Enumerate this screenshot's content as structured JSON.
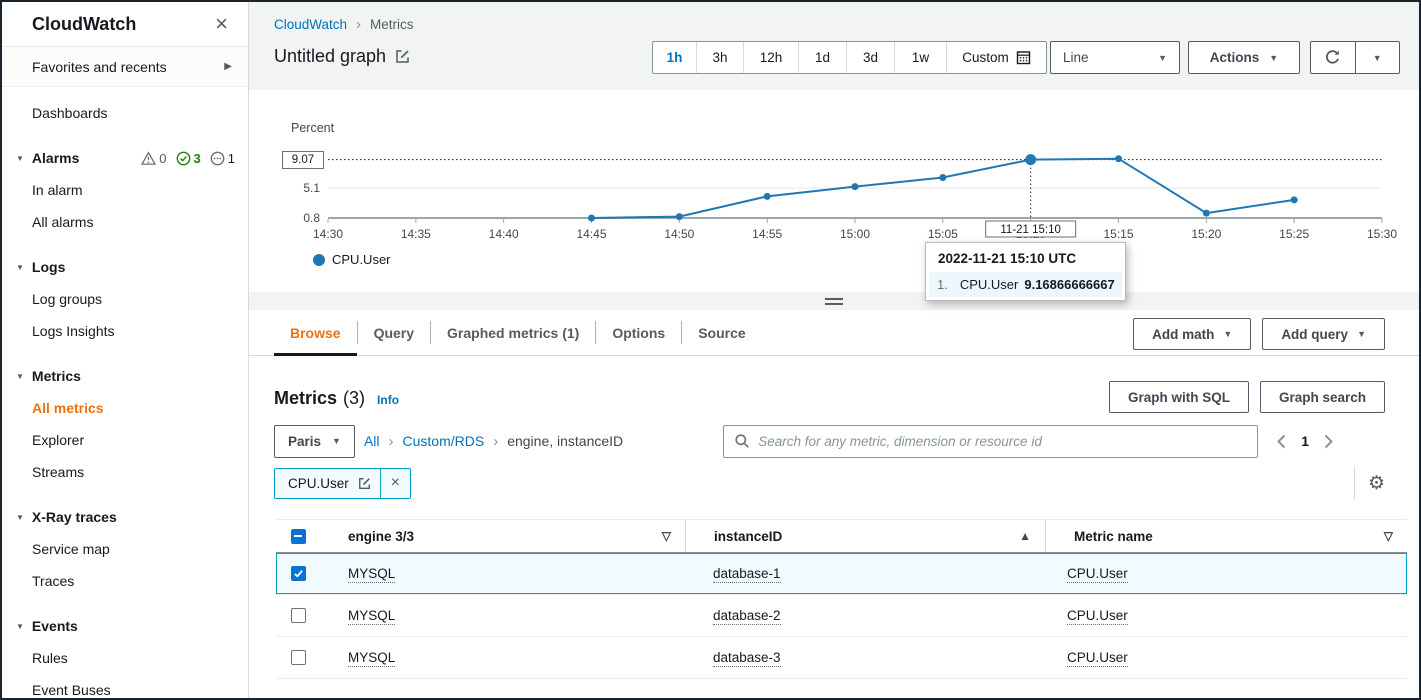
{
  "colors": {
    "accent_blue": "#0073bb",
    "accent_orange": "#ec7211",
    "chart_line": "#1f77b4",
    "selected_row_bg": "#f1faff",
    "selected_row_border": "#00a1c9",
    "checkbox_blue": "#0972d3"
  },
  "icons": {
    "close": "×",
    "fav_arrow": "▶",
    "section_caret": "▼",
    "dropdown_caret": "▼",
    "sort_unsorted": "▽",
    "sort_asc": "▲",
    "gear": "⚙"
  },
  "sidebar": {
    "title": "CloudWatch",
    "favorites": "Favorites and recents",
    "alarm_badges": {
      "in_alarm": "0",
      "ok": "3",
      "insufficient": "1"
    },
    "items": [
      {
        "label": "Dashboards"
      },
      {
        "label": "Alarms"
      },
      {
        "label": "In alarm"
      },
      {
        "label": "All alarms"
      },
      {
        "label": "Logs"
      },
      {
        "label": "Log groups"
      },
      {
        "label": "Logs Insights"
      },
      {
        "label": "Metrics"
      },
      {
        "label": "All metrics"
      },
      {
        "label": "Explorer"
      },
      {
        "label": "Streams"
      },
      {
        "label": "X-Ray traces"
      },
      {
        "label": "Service map"
      },
      {
        "label": "Traces"
      },
      {
        "label": "Events"
      },
      {
        "label": "Rules"
      },
      {
        "label": "Event Buses"
      }
    ]
  },
  "header": {
    "breadcrumb": [
      "CloudWatch",
      "Metrics"
    ],
    "title": "Untitled graph",
    "time_ranges": [
      "1h",
      "3h",
      "12h",
      "1d",
      "3d",
      "1w"
    ],
    "active_time_range": "1h",
    "custom_label": "Custom",
    "line_dropdown": "Line",
    "actions_label": "Actions"
  },
  "tabs": {
    "items": [
      "Browse",
      "Query",
      "Graphed metrics (1)",
      "Options",
      "Source"
    ],
    "active": "Browse",
    "add_math": "Add math",
    "add_query": "Add query"
  },
  "metrics_panel": {
    "title": "Metrics",
    "count": "(3)",
    "info": "Info",
    "graph_with_sql": "Graph with SQL",
    "graph_search": "Graph search",
    "region": "Paris",
    "breadcrumb": [
      "All",
      "Custom/RDS",
      "engine, instanceID"
    ],
    "search_placeholder": "Search for any metric, dimension or resource id",
    "page": "1",
    "filter_chip": "CPU.User"
  },
  "table": {
    "columns": [
      {
        "label": "engine 3/3",
        "sort": "none"
      },
      {
        "label": "instanceID",
        "sort": "asc"
      },
      {
        "label": "Metric name",
        "sort": "none"
      }
    ],
    "rows": [
      {
        "selected": true,
        "engine": "MYSQL",
        "instanceID": "database-1",
        "metric": "CPU.User"
      },
      {
        "selected": false,
        "engine": "MYSQL",
        "instanceID": "database-2",
        "metric": "CPU.User"
      },
      {
        "selected": false,
        "engine": "MYSQL",
        "instanceID": "database-3",
        "metric": "CPU.User"
      }
    ]
  },
  "chart_data": {
    "type": "line",
    "title": "Untitled graph",
    "ylabel": "Percent",
    "x_ticks": [
      "14:30",
      "14:35",
      "14:40",
      "14:45",
      "14:50",
      "14:55",
      "15:00",
      "15:05",
      "15:10",
      "15:15",
      "15:20",
      "15:25",
      "15:30"
    ],
    "y_axis_labels": [
      "9.07",
      "5.1",
      "0.8"
    ],
    "y_gridlines": [
      0.8,
      5.1
    ],
    "ylim": [
      0.8,
      10.2
    ],
    "grid": true,
    "legend_position": "bottom-left",
    "hover_x": "15:10",
    "hover_x_label": "11-21 15:10",
    "hover_line_value": 9.16866666667,
    "series": [
      {
        "name": "CPU.User",
        "color": "#1f77b4",
        "points": [
          {
            "x": "14:45",
            "y": 0.8
          },
          {
            "x": "14:50",
            "y": 1.0
          },
          {
            "x": "14:55",
            "y": 3.9
          },
          {
            "x": "15:00",
            "y": 5.3
          },
          {
            "x": "15:05",
            "y": 6.6
          },
          {
            "x": "15:10",
            "y": 9.16866666667
          },
          {
            "x": "15:15",
            "y": 9.3
          },
          {
            "x": "15:20",
            "y": 1.5
          },
          {
            "x": "15:25",
            "y": 3.4
          }
        ]
      }
    ],
    "tooltip": {
      "title": "2022-11-21 15:10 UTC",
      "rows": [
        {
          "index": "1.",
          "name": "CPU.User",
          "value": "9.16866666667"
        }
      ]
    },
    "legend": [
      {
        "name": "CPU.User",
        "color": "#1f77b4"
      }
    ]
  }
}
